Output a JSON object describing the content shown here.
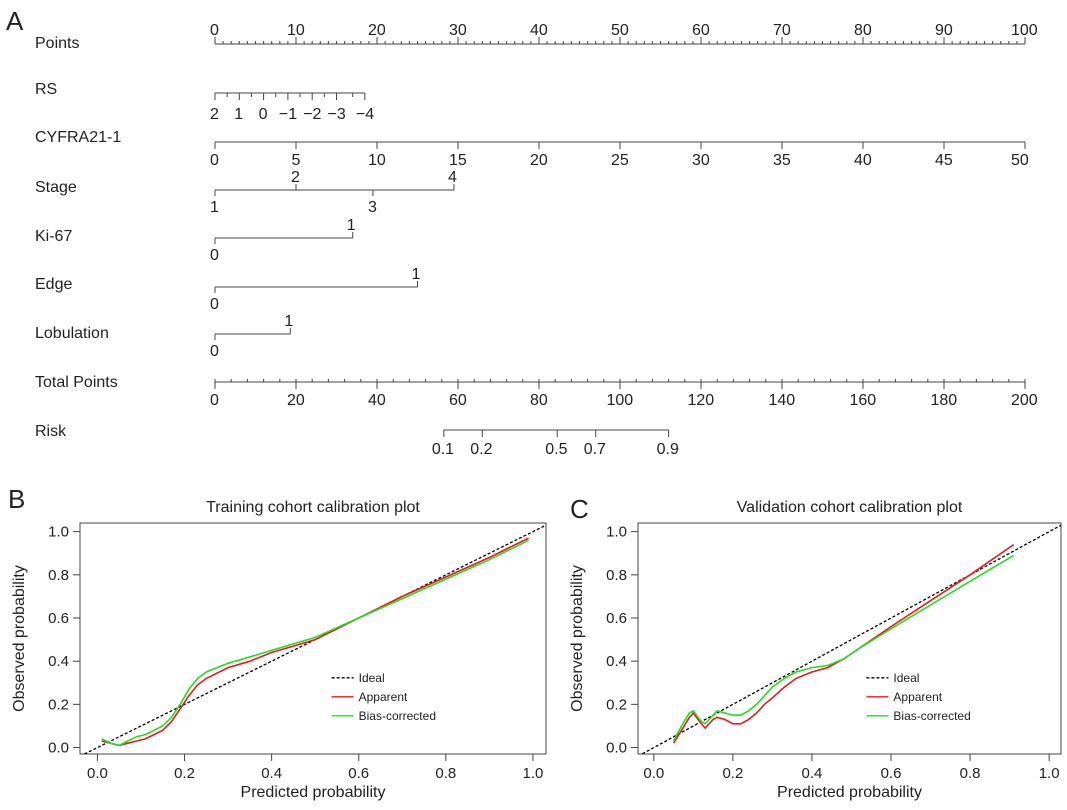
{
  "panels": {
    "a": "A",
    "b": "B",
    "c": "C"
  },
  "nomogram": {
    "rows": [
      {
        "label": "Points",
        "type": "scale",
        "min": 0,
        "max": 100,
        "major": [
          0,
          10,
          20,
          30,
          40,
          50,
          60,
          70,
          80,
          90,
          100
        ],
        "tick_labels": [
          "0",
          "10",
          "20",
          "30",
          "40",
          "50",
          "60",
          "70",
          "80",
          "90",
          "100"
        ],
        "minor_step": 1
      },
      {
        "label": "RS",
        "marks": [
          {
            "label": "2",
            "points": 0
          },
          {
            "label": "1",
            "points": 3
          },
          {
            "label": "0",
            "points": 6
          },
          {
            "label": "−1",
            "points": 9
          },
          {
            "label": "−2",
            "points": 12
          },
          {
            "label": "−3",
            "points": 15
          },
          {
            "label": "−4",
            "points": 18.5
          }
        ],
        "minor_points": [
          1.5,
          4.5,
          7.5,
          10.5,
          13.5,
          17
        ]
      },
      {
        "label": "CYFRA21-1",
        "type": "scale",
        "min": 0,
        "max": 50,
        "major": [
          0,
          5,
          10,
          15,
          20,
          25,
          30,
          35,
          40,
          45,
          50
        ],
        "tick_labels": [
          "0",
          "5",
          "10",
          "15",
          "20",
          "25",
          "30",
          "35",
          "40",
          "45",
          "50"
        ]
      },
      {
        "label": "Stage",
        "marks": [
          {
            "label": "1",
            "points": 0,
            "side": "below"
          },
          {
            "label": "2",
            "points": 10,
            "side": "above"
          },
          {
            "label": "3",
            "points": 19.5,
            "side": "below"
          },
          {
            "label": "4",
            "points": 29.5,
            "side": "above"
          }
        ]
      },
      {
        "label": "Ki-67",
        "marks": [
          {
            "label": "0",
            "points": 0,
            "side": "below"
          },
          {
            "label": "1",
            "points": 17,
            "side": "above"
          }
        ]
      },
      {
        "label": "Edge",
        "marks": [
          {
            "label": "0",
            "points": 0,
            "side": "below"
          },
          {
            "label": "1",
            "points": 25,
            "side": "above"
          }
        ]
      },
      {
        "label": "Lobulation",
        "marks": [
          {
            "label": "0",
            "points": 0,
            "side": "below"
          },
          {
            "label": "1",
            "points": 9.3,
            "side": "above"
          }
        ]
      },
      {
        "label": "Total Points",
        "type": "scale",
        "min": 0,
        "max": 200,
        "major": [
          0,
          20,
          40,
          60,
          80,
          100,
          120,
          140,
          160,
          180,
          200
        ],
        "tick_labels": [
          "0",
          "20",
          "40",
          "60",
          "80",
          "100",
          "120",
          "140",
          "160",
          "180",
          "200"
        ]
      },
      {
        "label": "Risk",
        "marks": [
          {
            "label": "0.1",
            "total": 56.5
          },
          {
            "label": "0.2",
            "total": 66
          },
          {
            "label": "0.5",
            "total": 84.5
          },
          {
            "label": "0.7",
            "total": 94
          },
          {
            "label": "0.9",
            "total": 112
          }
        ]
      }
    ]
  },
  "chart_data": [
    {
      "type": "line",
      "title": "Training cohort calibration plot",
      "xlabel": "Predicted probability",
      "ylabel": "Observed probability",
      "xlim": [
        -0.04,
        1.03
      ],
      "ylim": [
        -0.03,
        1.04
      ],
      "xticks": [
        "0.0",
        "0.2",
        "0.4",
        "0.6",
        "0.8",
        "1.0"
      ],
      "yticks": [
        "0.0",
        "0.2",
        "0.4",
        "0.6",
        "0.8",
        "1.0"
      ],
      "legend_position": "bottom-right",
      "series": [
        {
          "name": "Ideal",
          "color": "#000000",
          "dashed": true,
          "x": [
            -0.04,
            1.03
          ],
          "y": [
            -0.04,
            1.03
          ]
        },
        {
          "name": "Apparent",
          "color": "#e8191b",
          "x": [
            0.01,
            0.03,
            0.05,
            0.07,
            0.09,
            0.11,
            0.13,
            0.15,
            0.17,
            0.19,
            0.21,
            0.23,
            0.25,
            0.3,
            0.35,
            0.4,
            0.45,
            0.5,
            0.6,
            0.7,
            0.8,
            0.9,
            0.99
          ],
          "y": [
            0.03,
            0.02,
            0.01,
            0.02,
            0.03,
            0.04,
            0.06,
            0.08,
            0.12,
            0.18,
            0.24,
            0.29,
            0.32,
            0.37,
            0.4,
            0.44,
            0.47,
            0.5,
            0.6,
            0.7,
            0.79,
            0.88,
            0.97
          ]
        },
        {
          "name": "Bias-corrected",
          "color": "#22dd22",
          "x": [
            0.01,
            0.03,
            0.05,
            0.07,
            0.09,
            0.11,
            0.13,
            0.15,
            0.17,
            0.19,
            0.21,
            0.23,
            0.25,
            0.3,
            0.35,
            0.4,
            0.45,
            0.5,
            0.6,
            0.7,
            0.8,
            0.9,
            0.99
          ],
          "y": [
            0.04,
            0.02,
            0.01,
            0.03,
            0.05,
            0.06,
            0.08,
            0.1,
            0.14,
            0.2,
            0.27,
            0.32,
            0.35,
            0.39,
            0.42,
            0.45,
            0.48,
            0.51,
            0.6,
            0.69,
            0.78,
            0.87,
            0.96
          ]
        }
      ]
    },
    {
      "type": "line",
      "title": "Validation cohort calibration plot",
      "xlabel": "Predicted probability",
      "ylabel": "Observed probability",
      "xlim": [
        -0.04,
        1.03
      ],
      "ylim": [
        -0.03,
        1.04
      ],
      "xticks": [
        "0.0",
        "0.2",
        "0.4",
        "0.6",
        "0.8",
        "1.0"
      ],
      "yticks": [
        "0.0",
        "0.2",
        "0.4",
        "0.6",
        "0.8",
        "1.0"
      ],
      "legend_position": "bottom-right",
      "series": [
        {
          "name": "Ideal",
          "color": "#000000",
          "dashed": true,
          "x": [
            -0.04,
            1.03
          ],
          "y": [
            -0.04,
            1.03
          ]
        },
        {
          "name": "Apparent",
          "color": "#e8191b",
          "x": [
            0.05,
            0.07,
            0.09,
            0.1,
            0.12,
            0.13,
            0.15,
            0.16,
            0.18,
            0.2,
            0.22,
            0.24,
            0.26,
            0.28,
            0.3,
            0.33,
            0.36,
            0.4,
            0.44,
            0.48,
            0.52,
            0.6,
            0.7,
            0.8,
            0.91
          ],
          "y": [
            0.02,
            0.08,
            0.14,
            0.16,
            0.11,
            0.09,
            0.13,
            0.14,
            0.13,
            0.11,
            0.11,
            0.13,
            0.16,
            0.2,
            0.23,
            0.28,
            0.32,
            0.35,
            0.37,
            0.41,
            0.46,
            0.56,
            0.68,
            0.8,
            0.94
          ]
        },
        {
          "name": "Bias-corrected",
          "color": "#22dd22",
          "x": [
            0.05,
            0.07,
            0.09,
            0.1,
            0.12,
            0.13,
            0.15,
            0.16,
            0.18,
            0.2,
            0.22,
            0.24,
            0.26,
            0.28,
            0.3,
            0.33,
            0.36,
            0.4,
            0.44,
            0.48,
            0.52,
            0.6,
            0.7,
            0.8,
            0.91
          ],
          "y": [
            0.03,
            0.1,
            0.16,
            0.17,
            0.12,
            0.11,
            0.15,
            0.17,
            0.16,
            0.15,
            0.15,
            0.17,
            0.2,
            0.24,
            0.28,
            0.32,
            0.35,
            0.37,
            0.38,
            0.41,
            0.46,
            0.55,
            0.66,
            0.77,
            0.89
          ]
        }
      ]
    }
  ]
}
